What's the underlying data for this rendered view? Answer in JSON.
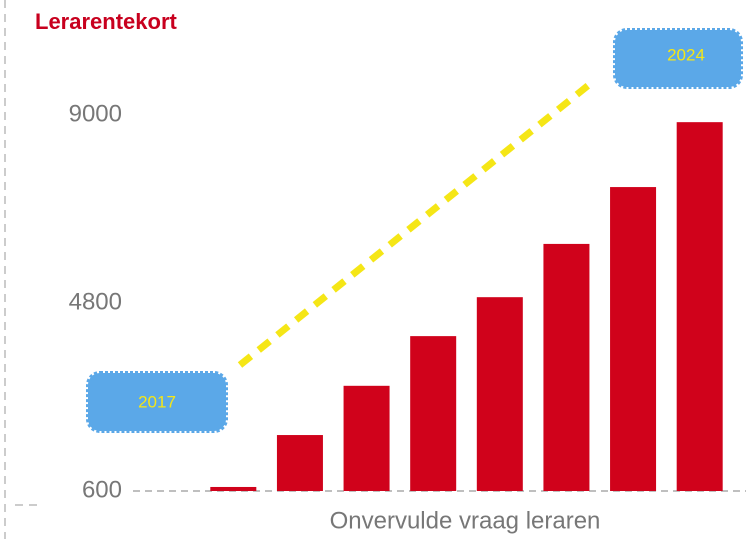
{
  "chart_data": {
    "type": "bar",
    "title": "Lerarentekort",
    "x_label": "Onvervulde vraag leraren",
    "categories": [
      null,
      null,
      null,
      null,
      null,
      null,
      null,
      null
    ],
    "values": [
      690,
      1850,
      2950,
      4060,
      4930,
      6120,
      7390,
      8840
    ],
    "color": "#d0021b",
    "ylim": [
      600,
      9000
    ],
    "yticks": [
      600,
      4800,
      9000
    ],
    "annotations": [
      "2017",
      "2024"
    ]
  }
}
